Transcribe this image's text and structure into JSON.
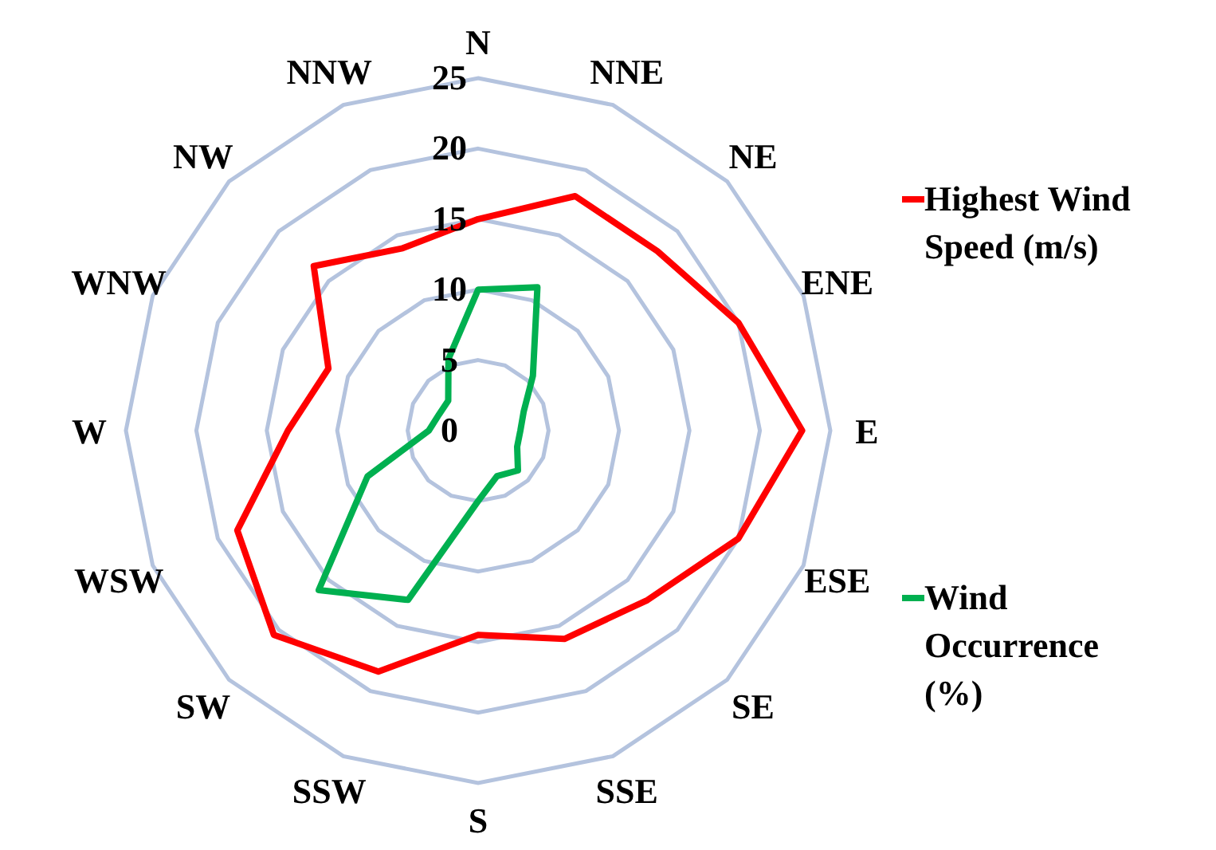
{
  "chart_data": {
    "type": "radar",
    "categories": [
      "N",
      "NNE",
      "NE",
      "ENE",
      "E",
      "ESE",
      "SE",
      "SSE",
      "S",
      "SSW",
      "SW",
      "WSW",
      "W",
      "WNW",
      "NW",
      "NNW"
    ],
    "ylim": [
      0,
      25
    ],
    "yticks": [
      0,
      5,
      10,
      15,
      20,
      25
    ],
    "grid": true,
    "legend": "right",
    "series": [
      {
        "name": "Highest Wind Speed (m/s)",
        "color": "#ff0000",
        "values": [
          15,
          18,
          18,
          20,
          23,
          20,
          17,
          16,
          14.5,
          18.5,
          20.5,
          18.5,
          13.5,
          11.5,
          16.5,
          14
        ]
      },
      {
        "name": "Wind Occurrence (%)",
        "color": "#00b050",
        "values": [
          10,
          11,
          5.5,
          3.5,
          3,
          3,
          4,
          3.5,
          5,
          13,
          16,
          8.5,
          3.5,
          3,
          3,
          5.5
        ]
      }
    ]
  }
}
